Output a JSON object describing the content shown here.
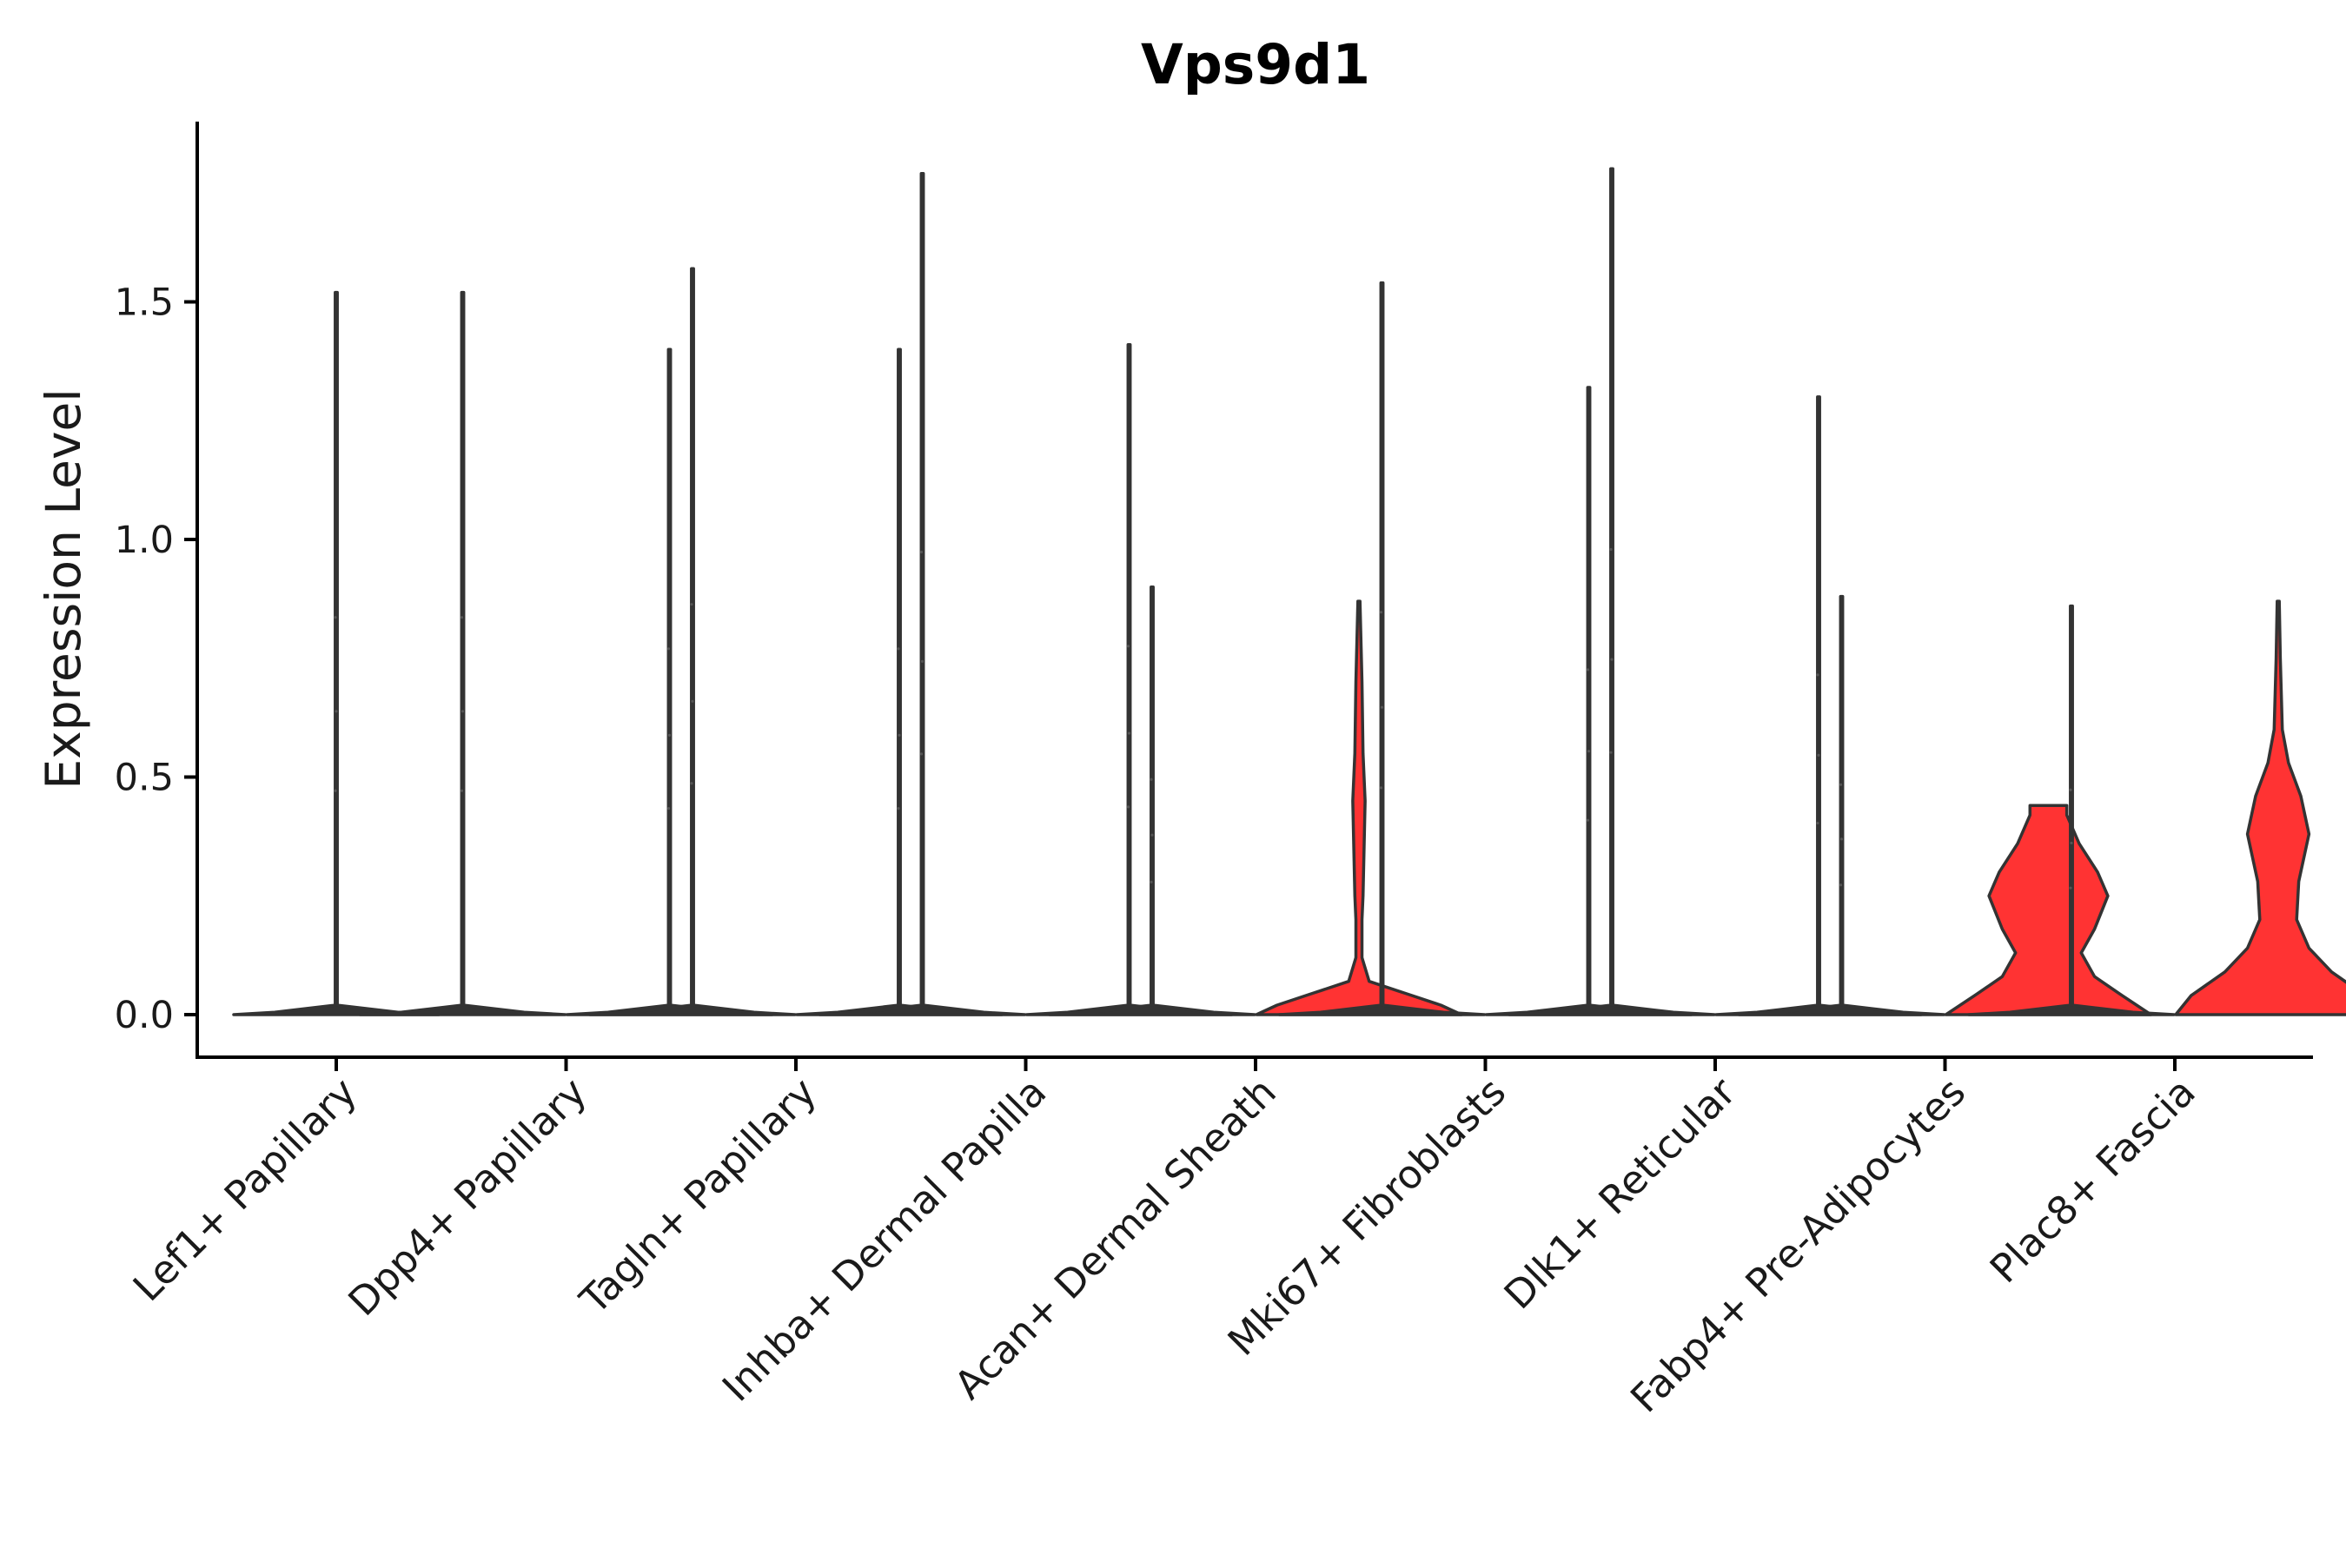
{
  "chart_data": {
    "type": "violin",
    "title": "Vps9d1",
    "xlabel": "",
    "ylabel": "Expression Level",
    "ylim": [
      -0.09,
      1.88
    ],
    "yticks": [
      0.0,
      0.5,
      1.0,
      1.5
    ],
    "ytick_labels": [
      "0.0",
      "0.5",
      "1.0",
      "1.5"
    ],
    "legend": "none",
    "grid": false,
    "fill_colors": {
      "low": "#333333",
      "high": "#ff3333"
    },
    "categories": [
      {
        "label": "Lef1+ Papillary",
        "violins": [
          {
            "max": 1.52,
            "fill": "low",
            "profile": [
              [
                0,
                1.0
              ],
              [
                0.005,
                0.6
              ],
              [
                0.02,
                0.01
              ],
              [
                1.52,
                0.01
              ]
            ]
          }
        ]
      },
      {
        "label": "Dpp4+ Papillary",
        "violins": [
          {
            "max": 1.52,
            "fill": "low",
            "profile": [
              [
                0,
                1.0
              ],
              [
                0.005,
                0.6
              ],
              [
                0.02,
                0.01
              ],
              [
                1.52,
                0.01
              ]
            ]
          },
          {
            "max": 1.4,
            "fill": "low",
            "profile": [
              [
                0,
                1.0
              ],
              [
                0.005,
                0.6
              ],
              [
                0.02,
                0.01
              ],
              [
                1.4,
                0.01
              ]
            ]
          }
        ]
      },
      {
        "label": "Tagln+ Papillary",
        "violins": [
          {
            "max": 1.57,
            "fill": "low",
            "profile": [
              [
                0,
                1.0
              ],
              [
                0.005,
                0.6
              ],
              [
                0.02,
                0.01
              ],
              [
                1.57,
                0.01
              ]
            ]
          },
          {
            "max": 1.4,
            "fill": "low",
            "profile": [
              [
                0,
                1.0
              ],
              [
                0.005,
                0.6
              ],
              [
                0.02,
                0.01
              ],
              [
                1.4,
                0.01
              ]
            ]
          }
        ]
      },
      {
        "label": "Inhba+ Dermal Papilla",
        "violins": [
          {
            "max": 1.77,
            "fill": "low",
            "profile": [
              [
                0,
                1.0
              ],
              [
                0.005,
                0.6
              ],
              [
                0.02,
                0.01
              ],
              [
                1.77,
                0.01
              ]
            ]
          },
          {
            "max": 1.41,
            "fill": "low",
            "profile": [
              [
                0,
                1.0
              ],
              [
                0.005,
                0.6
              ],
              [
                0.02,
                0.01
              ],
              [
                1.41,
                0.01
              ]
            ]
          }
        ]
      },
      {
        "label": "Acan+ Dermal Sheath",
        "violins": [
          {
            "max": 0.9,
            "fill": "low",
            "profile": [
              [
                0,
                1.0
              ],
              [
                0.005,
                0.6
              ],
              [
                0.02,
                0.01
              ],
              [
                0.9,
                0.01
              ]
            ]
          },
          {
            "max": 0.87,
            "fill": "high",
            "profile": [
              [
                0,
                1.0
              ],
              [
                0.02,
                0.8
              ],
              [
                0.045,
                0.45
              ],
              [
                0.07,
                0.1
              ],
              [
                0.12,
                0.03
              ],
              [
                0.2,
                0.03
              ],
              [
                0.25,
                0.04
              ],
              [
                0.35,
                0.05
              ],
              [
                0.45,
                0.06
              ],
              [
                0.55,
                0.04
              ],
              [
                0.7,
                0.03
              ],
              [
                0.87,
                0.01
              ]
            ]
          }
        ]
      },
      {
        "label": "Mki67+ Fibroblasts",
        "violins": [
          {
            "max": 1.54,
            "fill": "low",
            "profile": [
              [
                0,
                1.0
              ],
              [
                0.005,
                0.6
              ],
              [
                0.02,
                0.01
              ],
              [
                1.54,
                0.01
              ]
            ]
          },
          {
            "max": 1.32,
            "fill": "low",
            "profile": [
              [
                0,
                1.0
              ],
              [
                0.005,
                0.6
              ],
              [
                0.02,
                0.01
              ],
              [
                1.32,
                0.01
              ]
            ]
          }
        ]
      },
      {
        "label": "Dlk1+ Reticular",
        "violins": [
          {
            "max": 1.78,
            "fill": "low",
            "profile": [
              [
                0,
                1.0
              ],
              [
                0.005,
                0.6
              ],
              [
                0.02,
                0.01
              ],
              [
                1.78,
                0.01
              ]
            ]
          },
          {
            "max": 1.3,
            "fill": "low",
            "profile": [
              [
                0,
                1.0
              ],
              [
                0.005,
                0.6
              ],
              [
                0.02,
                0.01
              ],
              [
                1.3,
                0.01
              ]
            ]
          }
        ]
      },
      {
        "label": "Fabp4+ Pre-Adipocytes",
        "violins": [
          {
            "max": 0.88,
            "fill": "low",
            "profile": [
              [
                0,
                1.0
              ],
              [
                0.005,
                0.6
              ],
              [
                0.02,
                0.01
              ],
              [
                0.88,
                0.01
              ]
            ]
          },
          {
            "max": 0.44,
            "fill": "high",
            "profile": [
              [
                0,
                1.0
              ],
              [
                0.04,
                0.72
              ],
              [
                0.08,
                0.45
              ],
              [
                0.13,
                0.32
              ],
              [
                0.18,
                0.45
              ],
              [
                0.25,
                0.58
              ],
              [
                0.3,
                0.48
              ],
              [
                0.36,
                0.3
              ],
              [
                0.42,
                0.18
              ],
              [
                0.44,
                0.18
              ]
            ]
          }
        ]
      },
      {
        "label": "Plac8+ Fascia",
        "violins": [
          {
            "max": 0.86,
            "fill": "low",
            "profile": [
              [
                0,
                1.0
              ],
              [
                0.005,
                0.6
              ],
              [
                0.02,
                0.01
              ],
              [
                0.86,
                0.01
              ]
            ]
          },
          {
            "max": 0.87,
            "fill": "high",
            "profile": [
              [
                0,
                1.0
              ],
              [
                0.04,
                0.85
              ],
              [
                0.09,
                0.52
              ],
              [
                0.14,
                0.3
              ],
              [
                0.2,
                0.18
              ],
              [
                0.28,
                0.2
              ],
              [
                0.38,
                0.3
              ],
              [
                0.46,
                0.22
              ],
              [
                0.53,
                0.1
              ],
              [
                0.6,
                0.04
              ],
              [
                0.75,
                0.02
              ],
              [
                0.87,
                0.01
              ]
            ]
          }
        ]
      }
    ]
  }
}
